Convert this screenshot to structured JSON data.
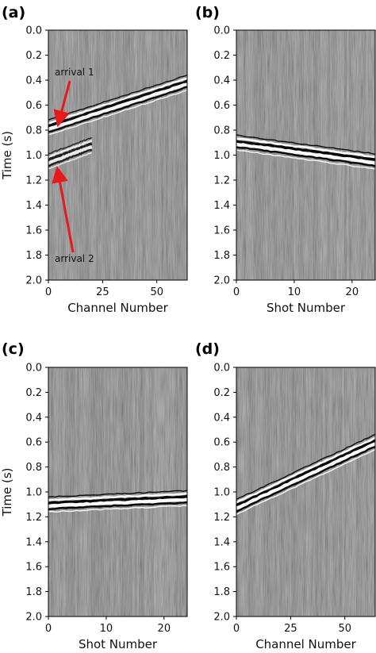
{
  "chart_data": [
    {
      "type": "heatmap",
      "panel": "(a)",
      "xlabel": "Channel Number",
      "ylabel": "Time (s)",
      "xlim": [
        0,
        64
      ],
      "ylim": [
        2.0,
        0.0
      ],
      "xticks": [
        0,
        25,
        50
      ],
      "yticks": [
        0.0,
        0.2,
        0.4,
        0.6,
        0.8,
        1.0,
        1.2,
        1.4,
        1.6,
        1.8,
        2.0
      ],
      "events": [
        {
          "x0": 0,
          "t0": 0.78,
          "x1": 64,
          "t1": 0.42,
          "strength": 0.9
        },
        {
          "x0": 0,
          "t0": 1.05,
          "x1": 20,
          "t1": 0.92,
          "strength": 0.6
        }
      ],
      "annotations": [
        {
          "text": "arrival 1",
          "x": 2,
          "t": 0.77
        },
        {
          "text": "arrival 2",
          "x": 2,
          "t": 1.1
        }
      ]
    },
    {
      "type": "heatmap",
      "panel": "(b)",
      "xlabel": "Shot Number",
      "ylabel": "",
      "xlim": [
        0,
        24
      ],
      "ylim": [
        2.0,
        0.0
      ],
      "xticks": [
        0,
        10,
        20
      ],
      "yticks": [
        0.0,
        0.2,
        0.4,
        0.6,
        0.8,
        1.0,
        1.2,
        1.4,
        1.6,
        1.8,
        2.0
      ],
      "events": [
        {
          "x0": 0,
          "t0": 0.9,
          "x1": 24,
          "t1": 1.05,
          "strength": 1.0
        }
      ]
    },
    {
      "type": "heatmap",
      "panel": "(c)",
      "xlabel": "Shot Number",
      "ylabel": "Time (s)",
      "xlim": [
        0,
        24
      ],
      "ylim": [
        2.0,
        0.0
      ],
      "xticks": [
        0,
        10,
        20
      ],
      "yticks": [
        0.0,
        0.2,
        0.4,
        0.6,
        0.8,
        1.0,
        1.2,
        1.4,
        1.6,
        1.8,
        2.0
      ],
      "events": [
        {
          "x0": 0,
          "t0": 1.1,
          "x1": 24,
          "t1": 1.05,
          "strength": 1.0
        }
      ]
    },
    {
      "type": "heatmap",
      "panel": "(d)",
      "xlabel": "Channel Number",
      "ylabel": "",
      "xlim": [
        0,
        64
      ],
      "ylim": [
        2.0,
        0.0
      ],
      "xticks": [
        0,
        25,
        50
      ],
      "yticks": [
        0.0,
        0.2,
        0.4,
        0.6,
        0.8,
        1.0,
        1.2,
        1.4,
        1.6,
        1.8,
        2.0
      ],
      "events": [
        {
          "x0": 0,
          "t0": 1.12,
          "x1": 64,
          "t1": 0.6,
          "strength": 1.0
        }
      ]
    }
  ],
  "colors": {
    "background": "#808080",
    "positive": "#ffffff",
    "negative": "#000000",
    "annotation_arrow": "#e8191a"
  }
}
